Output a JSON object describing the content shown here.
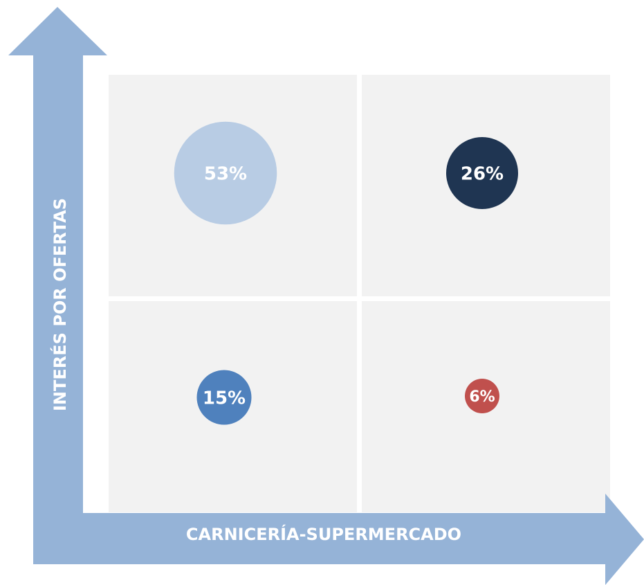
{
  "chart_data": {
    "type": "quadrant-bubble",
    "x_label": "CARNICERÍA-SUPERMERCADO",
    "y_label": "INTERÉS POR OFERTAS",
    "values": [
      53,
      26,
      15,
      6
    ],
    "value_labels": [
      "53%",
      "26%",
      "15%",
      "6%"
    ],
    "colors": [
      "#b8cce4",
      "#1f3552",
      "#4f81bd",
      "#c0504d"
    ]
  }
}
